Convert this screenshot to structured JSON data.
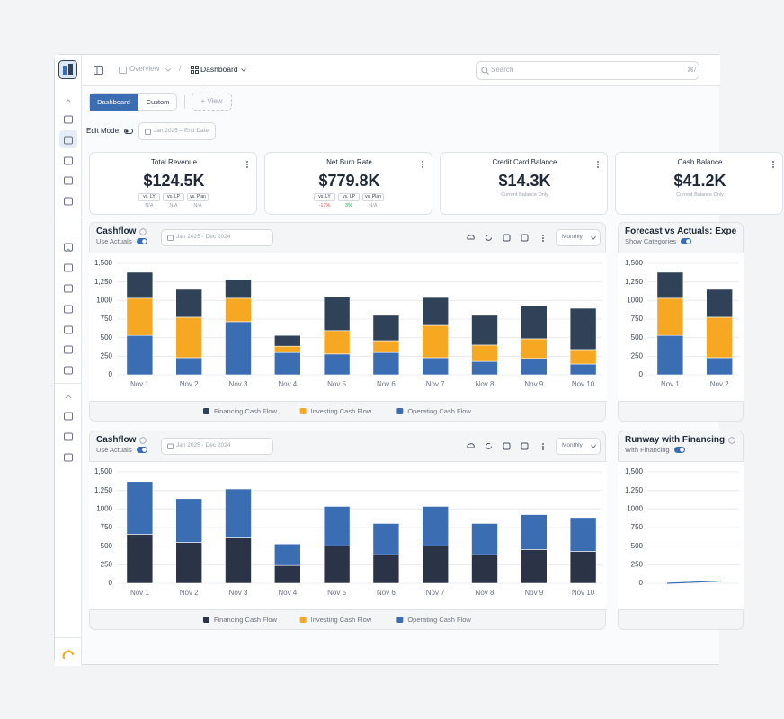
{
  "topbar": {
    "breadcrumb": [
      "Overview",
      "Dashboard"
    ],
    "search_placeholder": "Search",
    "shortcut": "⌘/"
  },
  "toolbar": {
    "tabs": [
      "Dashboard",
      "Custom"
    ],
    "add_view": "+ View",
    "edit_mode": "Edit Mode:",
    "date_range": "Jan 2025 – End Date"
  },
  "kpis": [
    {
      "title": "Total Revenue",
      "value": "$124.5K",
      "comparisons": [
        {
          "label": "vs. LY",
          "change": "N/A"
        },
        {
          "label": "vs. LP",
          "change": "N/A"
        },
        {
          "label": "vs. Plan",
          "change": "N/A"
        }
      ]
    },
    {
      "title": "Net Burn Rate",
      "value": "$779.8K",
      "comparisons": [
        {
          "label": "vs. LY",
          "change": "-17%",
          "color": "#e5484d"
        },
        {
          "label": "vs. LP",
          "change": "3%",
          "color": "#22a55a"
        },
        {
          "label": "vs. Plan",
          "change": "N/A"
        }
      ]
    },
    {
      "title": "Credit  Card Balance",
      "value": "$14.3K",
      "note": "Current Balance Only"
    },
    {
      "title": "Cash Balance",
      "value": "$41.2K",
      "note": "Current Balance Only"
    }
  ],
  "panels": [
    {
      "title": "Cashflow",
      "toggle": "Use Actuals",
      "date_range": "Jan 2025 - Dec 2024",
      "period": "Monthly",
      "chart": {
        "type": "bar",
        "stacked": true,
        "grid": true,
        "legend": true,
        "stack_order": [
          2,
          1,
          0
        ],
        "categories": [
          "Nov 1",
          "Nov 2",
          "Nov 3",
          "Nov 4",
          "Nov 5",
          "Nov 6",
          "Nov 7",
          "Nov 8",
          "Nov 9",
          "Nov 10"
        ],
        "series": [
          {
            "name": "Financing Cash Flow",
            "color": "#2f4257",
            "values": [
              350,
              375,
              255,
              145,
              450,
              340,
              375,
              400,
              445,
              555
            ]
          },
          {
            "name": "Investing Cash Flow",
            "color": "#f7a823",
            "values": [
              500,
              545,
              315,
              85,
              315,
              160,
              435,
              220,
              265,
              195
            ]
          },
          {
            "name": "Operating Cash Flow",
            "color": "#3b6db3",
            "values": [
              530,
              230,
              715,
              300,
              280,
              300,
              230,
              180,
              220,
              145
            ]
          }
        ],
        "ylim": [
          0,
          1500
        ],
        "yticks": [
          0,
          250,
          500,
          750,
          1000,
          {
            "value": 1250,
            "label": "1,250"
          },
          {
            "value": 1500,
            "label": "1,500"
          }
        ]
      }
    },
    {
      "title": "Forecast vs Actuals: Expe",
      "toggle": "Show Categories",
      "chart": {
        "type": "bar",
        "stacked": true,
        "grid": true,
        "legend": false,
        "stack_order": [
          2,
          1,
          0
        ],
        "categories": [
          "Nov 1",
          "Nov 2"
        ],
        "series": [
          {
            "color": "#2f4257",
            "values": [
              350,
              375
            ]
          },
          {
            "color": "#f7a823",
            "values": [
              500,
              545
            ]
          },
          {
            "color": "#3b6db3",
            "values": [
              530,
              230
            ]
          }
        ],
        "ylim": [
          0,
          1500
        ],
        "yticks": [
          0,
          250,
          500,
          750,
          1000,
          {
            "value": 1250,
            "label": "1,250"
          },
          {
            "value": 1500,
            "label": "1,500"
          }
        ]
      }
    },
    {
      "title": "Cashflow",
      "toggle": "Use Actuals",
      "date_range": "Jan 2025 - Dec 2024",
      "period": "Monthly",
      "chart": {
        "type": "bar",
        "stacked": true,
        "grid": true,
        "legend": true,
        "stack_order": [
          0,
          1,
          2
        ],
        "categories": [
          "Nov 1",
          "Nov 2",
          "Nov 3",
          "Nov 4",
          "Nov 5",
          "Nov 6",
          "Nov 7",
          "Nov 8",
          "Nov 9",
          "Nov 10"
        ],
        "series": [
          {
            "name": "Financing Cash Flow",
            "color": "#2b3446",
            "values": [
              660,
              550,
              610,
              240,
              505,
              385,
              505,
              385,
              455,
              430
            ]
          },
          {
            "name": "Investing Cash Flow",
            "color": "#f7a823",
            "values": [
              0,
              0,
              0,
              0,
              0,
              0,
              0,
              0,
              0,
              0
            ]
          },
          {
            "name": "Operating Cash Flow",
            "color": "#3b6db3",
            "values": [
              710,
              590,
              660,
              290,
              530,
              420,
              530,
              420,
              470,
              455
            ]
          }
        ],
        "ylim": [
          0,
          1500
        ],
        "yticks": [
          0,
          250,
          500,
          750,
          1000,
          {
            "value": 1250,
            "label": "1,250"
          },
          {
            "value": 1500,
            "label": "1,500"
          }
        ]
      }
    },
    {
      "title": "Runway with Financing",
      "toggle": "With Financing",
      "chart": {
        "type": "line",
        "grid": true,
        "legend": false,
        "series": [
          {
            "color": "#3b6db3",
            "values": [
              0,
              30
            ]
          }
        ],
        "ylim": [
          0,
          1500
        ],
        "yticks": [
          0,
          250,
          500,
          750,
          1000,
          {
            "value": 1250,
            "label": "1,250"
          },
          {
            "value": 1500,
            "label": "1,500"
          }
        ]
      }
    }
  ]
}
